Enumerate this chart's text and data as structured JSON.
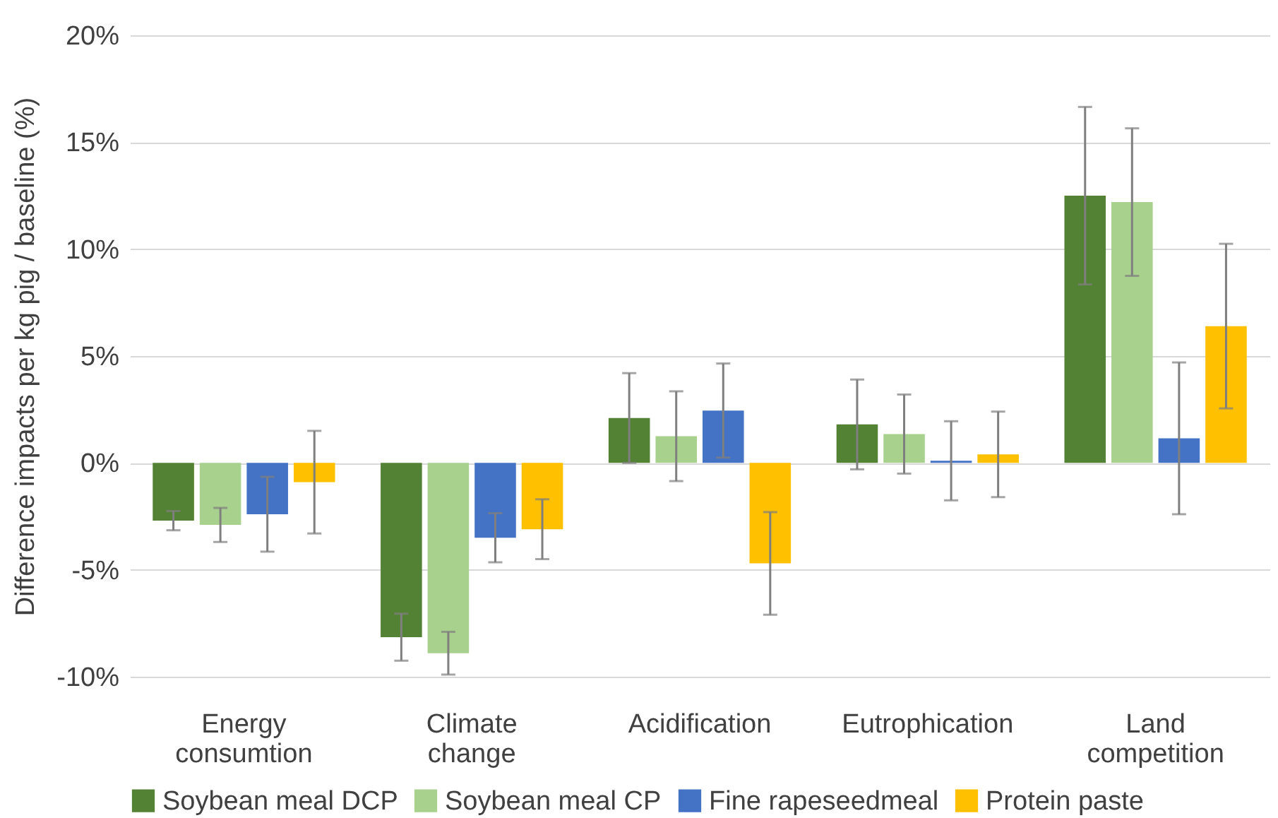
{
  "chart_data": {
    "type": "bar",
    "ylabel": "Difference impacts per kg pig / baseline (%)",
    "categories": [
      "Energy consumtion",
      "Climate change",
      "Acidification",
      "Eutrophication",
      "Land competition"
    ],
    "series": [
      {
        "name": "Soybean meal DCP",
        "color": "#548235",
        "values": [
          -2.7,
          -8.15,
          2.1,
          1.8,
          12.5
        ],
        "errors": [
          0.45,
          1.1,
          2.1,
          2.1,
          4.15
        ]
      },
      {
        "name": "Soybean meal CP",
        "color": "#a9d18e",
        "values": [
          -2.9,
          -8.9,
          1.25,
          1.35,
          12.2
        ],
        "errors": [
          0.8,
          1.0,
          2.1,
          1.85,
          3.45
        ]
      },
      {
        "name": "Fine rapeseedmeal",
        "color": "#4472c4",
        "values": [
          -2.4,
          -3.5,
          2.45,
          0.1,
          1.15
        ],
        "errors": [
          1.75,
          1.15,
          2.2,
          1.85,
          3.55
        ]
      },
      {
        "name": "Protein paste",
        "color": "#ffc000",
        "values": [
          -0.9,
          -3.1,
          -4.7,
          0.4,
          6.4
        ],
        "errors": [
          2.4,
          1.4,
          2.4,
          2.0,
          3.85
        ]
      }
    ],
    "ylim": [
      -10,
      20
    ],
    "yticks": [
      {
        "value": -10,
        "label": "-10%"
      },
      {
        "value": -5,
        "label": "-5%"
      },
      {
        "value": 0,
        "label": "0%"
      },
      {
        "value": 5,
        "label": "5%"
      },
      {
        "value": 10,
        "label": "10%"
      },
      {
        "value": 15,
        "label": "15%"
      },
      {
        "value": 20,
        "label": "20%"
      }
    ],
    "grid": "y",
    "legend": "bottom"
  }
}
